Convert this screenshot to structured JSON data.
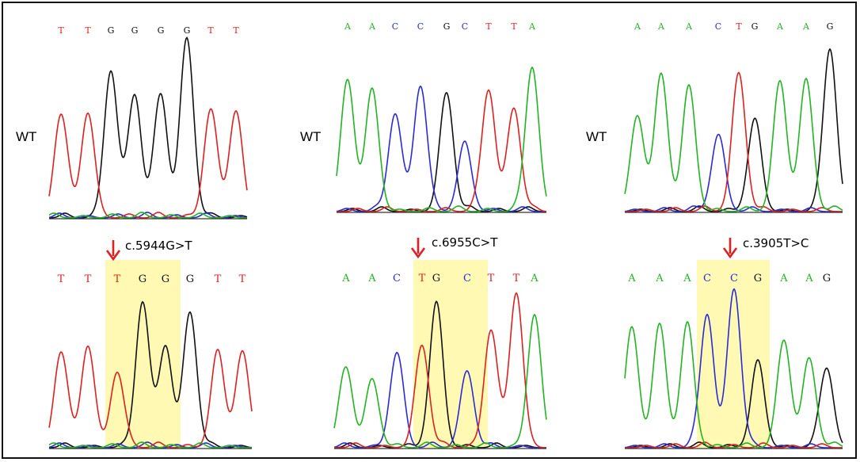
{
  "labels": {
    "wt": "WT"
  },
  "colors": {
    "A": "#22b422",
    "C": "#2b2bd6",
    "G": "#111111",
    "T": "#dd2020",
    "highlight": "#fff8ae",
    "arrow": "#e02020"
  },
  "panels": [
    {
      "wt": {
        "label": "WT",
        "bases": [
          "T",
          "T",
          "G",
          "G",
          "G",
          "G",
          "T",
          "T"
        ]
      },
      "mutation": "c.5944G>T",
      "mut": {
        "bases": [
          "T",
          "T",
          "T",
          "G",
          "G",
          "G",
          "T",
          "T"
        ]
      }
    },
    {
      "wt": {
        "label": "WT",
        "bases": [
          "A",
          "A",
          "C",
          "C",
          "G",
          "C",
          "T",
          "T",
          "A"
        ]
      },
      "mutation": "c.6955C>T",
      "mut": {
        "bases": [
          "A",
          "A",
          "C",
          "T",
          "G",
          "C",
          "T",
          "T",
          "A"
        ]
      }
    },
    {
      "wt": {
        "label": "WT",
        "bases": [
          "A",
          "A",
          "A",
          "C",
          "T",
          "G",
          "A",
          "A",
          "G"
        ]
      },
      "mutation": "c.3905T>C",
      "mut": {
        "bases": [
          "A",
          "A",
          "A",
          "C",
          "C",
          "G",
          "A",
          "A",
          "G"
        ]
      }
    }
  ]
}
